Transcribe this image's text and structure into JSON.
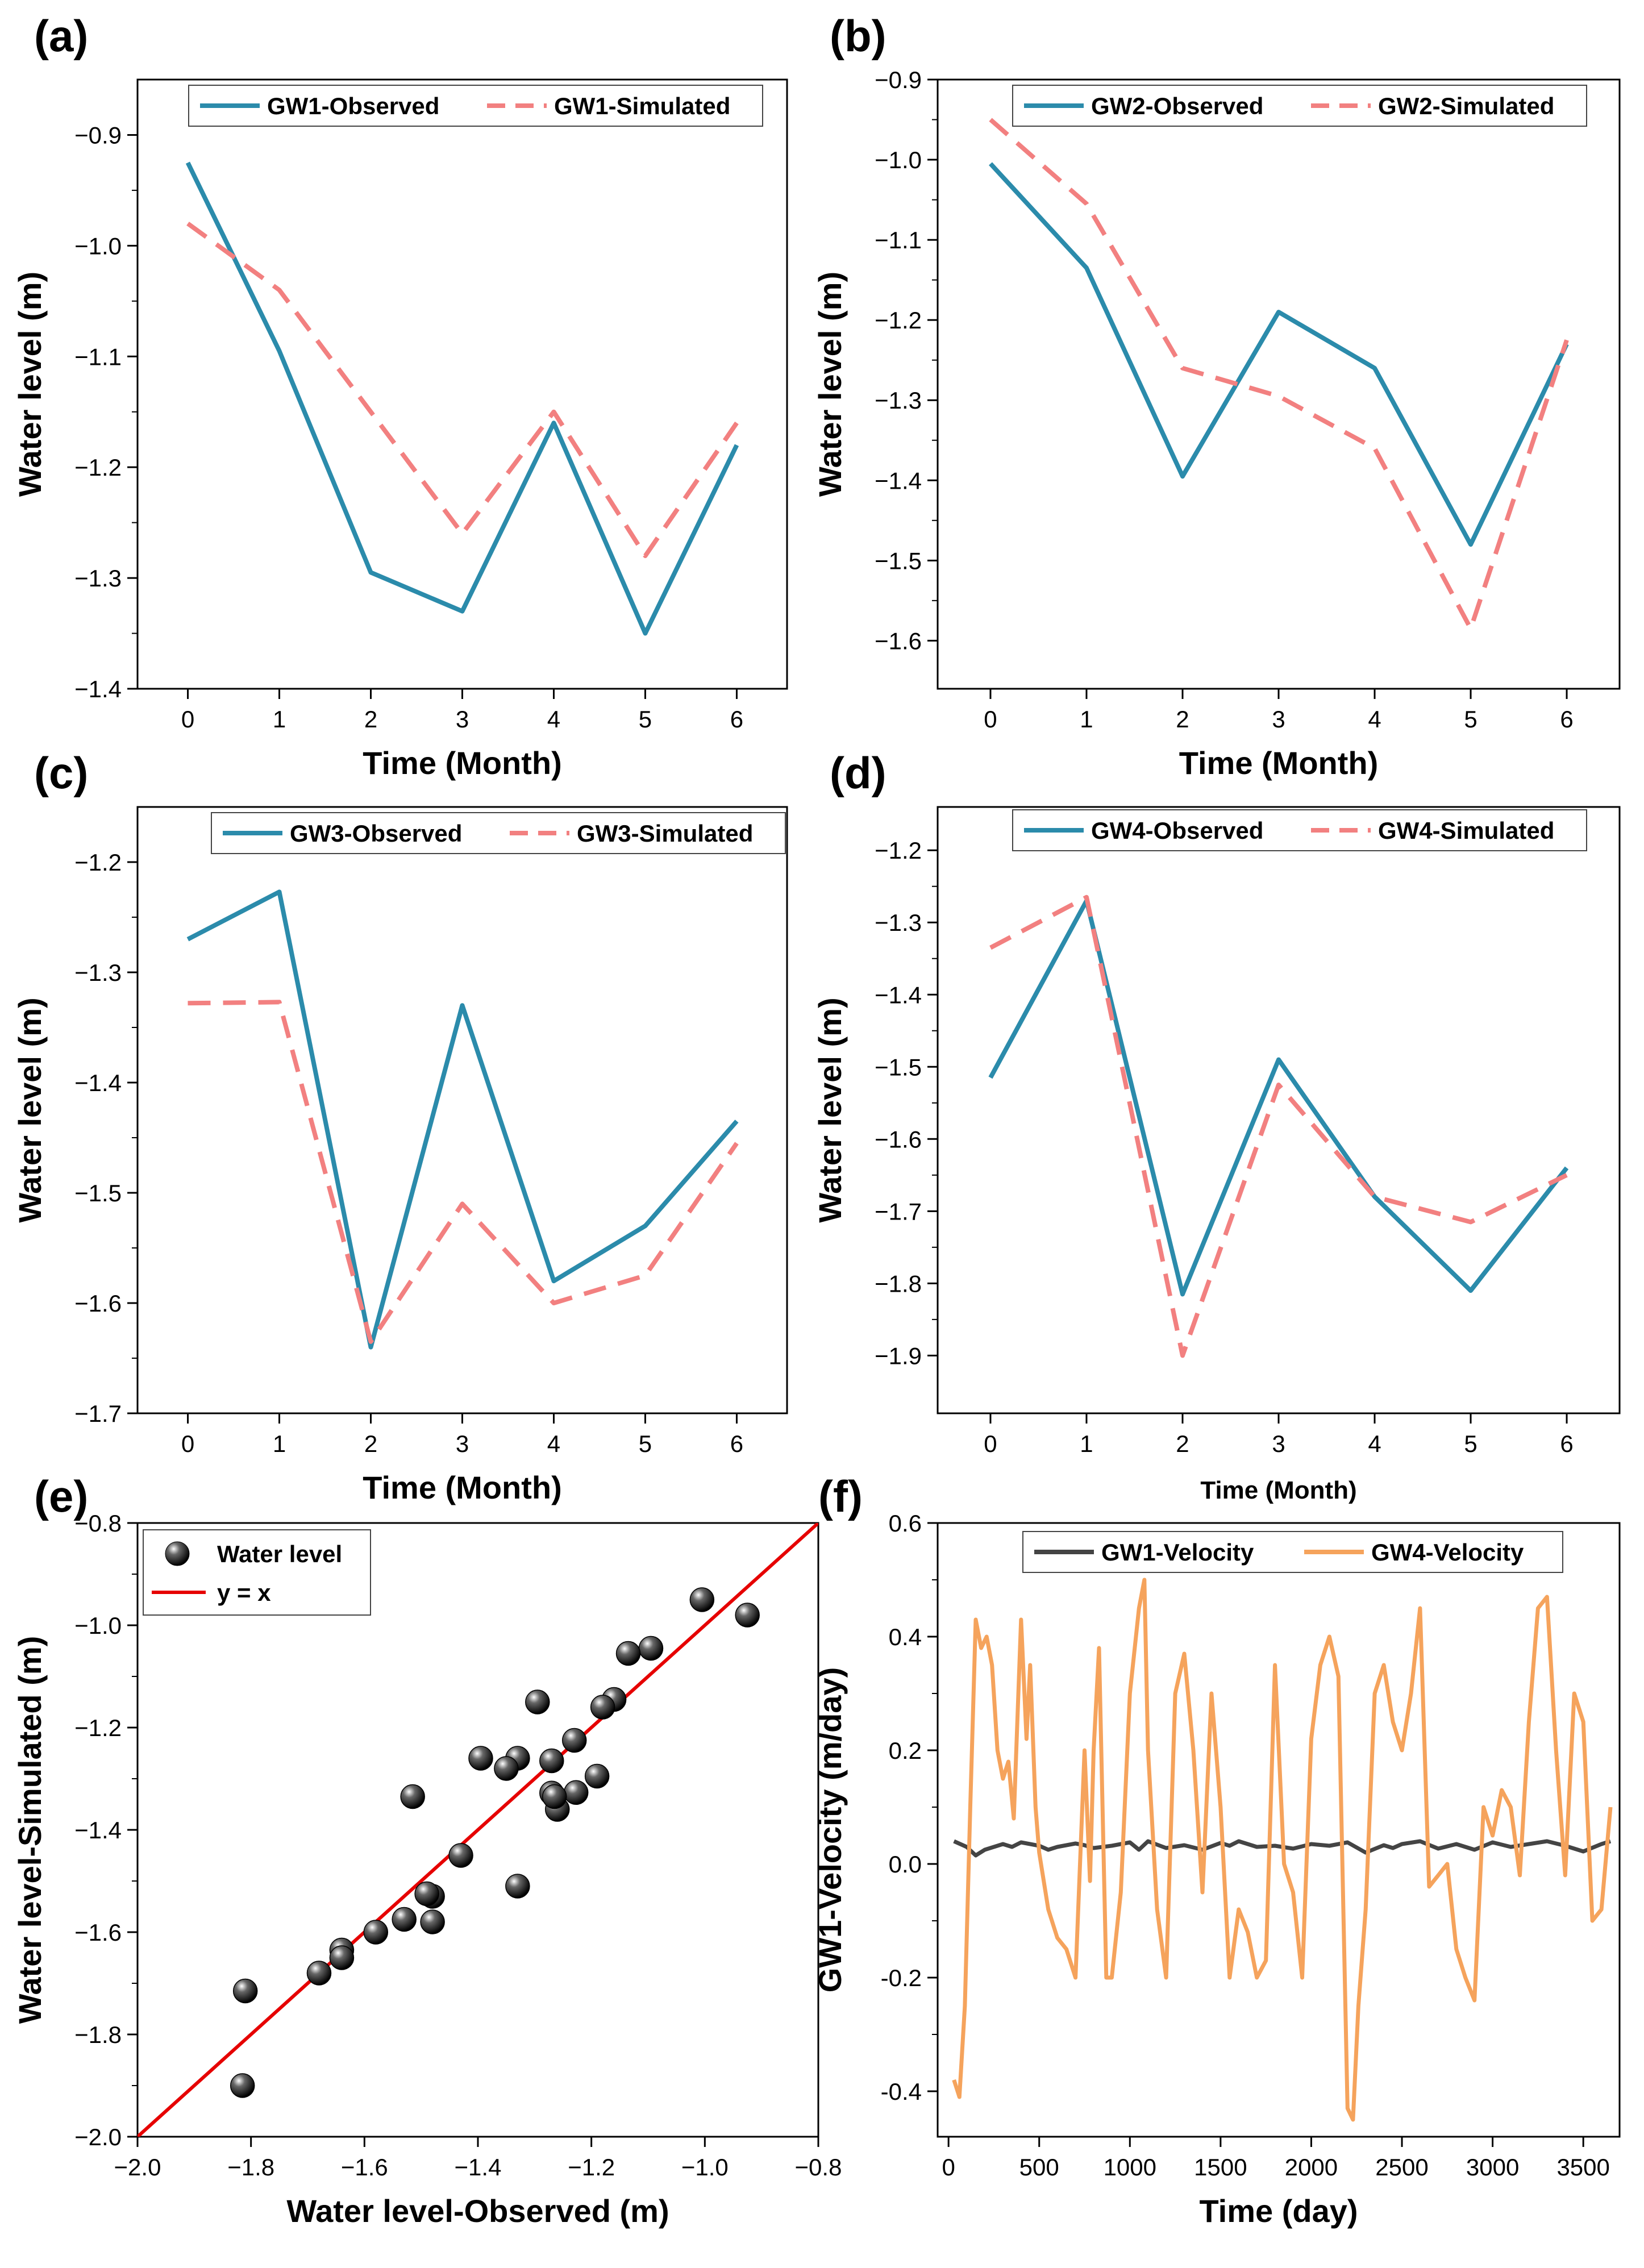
{
  "colors": {
    "observed": "#2b8bab",
    "simulated": "#f28080",
    "gw1_velocity": "#444444",
    "gw4_velocity": "#f5a35c",
    "fit_line": "#e60000",
    "marker": "#111111"
  },
  "chart_data": [
    {
      "id": "a",
      "type": "line",
      "panel_label": "(a)",
      "xlabel": "Time (Month)",
      "ylabel": "Water level (m)",
      "x": [
        0,
        1,
        2,
        3,
        4,
        5,
        6
      ],
      "xlim": [
        -0.55,
        6.55
      ],
      "ylim": [
        -1.4,
        -0.85
      ],
      "xticks": [
        0,
        1,
        2,
        3,
        4,
        5,
        6
      ],
      "xtick_labels": [
        "0",
        "1",
        "2",
        "3",
        "4",
        "5",
        "6"
      ],
      "yticks": [
        -1.4,
        -1.3,
        -1.2,
        -1.1,
        -1.0,
        -0.9
      ],
      "ytick_labels": [
        "−1.4",
        "−1.3",
        "−1.2",
        "−1.1",
        "−1.0",
        "−0.9"
      ],
      "legend": "top",
      "series": [
        {
          "name": "GW1-Observed",
          "style": "solid",
          "color_key": "observed",
          "values": [
            -0.925,
            -1.095,
            -1.295,
            -1.33,
            -1.16,
            -1.35,
            -1.18
          ]
        },
        {
          "name": "GW1-Simulated",
          "style": "dashed",
          "color_key": "simulated",
          "values": [
            -0.98,
            -1.04,
            -1.15,
            -1.26,
            -1.15,
            -1.28,
            -1.16
          ]
        }
      ]
    },
    {
      "id": "b",
      "type": "line",
      "panel_label": "(b)",
      "xlabel": "Time (Month)",
      "ylabel": "Water level (m)",
      "x": [
        0,
        1,
        2,
        3,
        4,
        5,
        6
      ],
      "xlim": [
        -0.55,
        6.55
      ],
      "ylim": [
        -1.66,
        -0.9
      ],
      "xticks": [
        0,
        1,
        2,
        3,
        4,
        5,
        6
      ],
      "xtick_labels": [
        "0",
        "1",
        "2",
        "3",
        "4",
        "5",
        "6"
      ],
      "yticks": [
        -1.6,
        -1.5,
        -1.4,
        -1.3,
        -1.2,
        -1.1,
        -1.0,
        -0.9
      ],
      "ytick_labels": [
        "−1.6",
        "−1.5",
        "−1.4",
        "−1.3",
        "−1.2",
        "−1.1",
        "−1.0",
        "−0.9"
      ],
      "legend": "top",
      "series": [
        {
          "name": "GW2-Observed",
          "style": "solid",
          "color_key": "observed",
          "values": [
            -1.005,
            -1.135,
            -1.395,
            -1.19,
            -1.26,
            -1.48,
            -1.23
          ]
        },
        {
          "name": "GW2-Simulated",
          "style": "dashed",
          "color_key": "simulated",
          "values": [
            -0.95,
            -1.055,
            -1.26,
            -1.295,
            -1.36,
            -1.585,
            -1.225
          ]
        }
      ]
    },
    {
      "id": "c",
      "type": "line",
      "panel_label": "(c)",
      "xlabel": "Time (Month)",
      "ylabel": "Water level (m)",
      "x": [
        0,
        1,
        2,
        3,
        4,
        5,
        6
      ],
      "xlim": [
        -0.55,
        6.55
      ],
      "ylim": [
        -1.7,
        -1.15
      ],
      "xticks": [
        0,
        1,
        2,
        3,
        4,
        5,
        6
      ],
      "xtick_labels": [
        "0",
        "1",
        "2",
        "3",
        "4",
        "5",
        "6"
      ],
      "yticks": [
        -1.7,
        -1.6,
        -1.5,
        -1.4,
        -1.3,
        -1.2
      ],
      "ytick_labels": [
        "−1.7",
        "−1.6",
        "−1.5",
        "−1.4",
        "−1.3",
        "−1.2"
      ],
      "legend": "top",
      "series": [
        {
          "name": "GW3-Observed",
          "style": "solid",
          "color_key": "observed",
          "values": [
            -1.27,
            -1.227,
            -1.64,
            -1.33,
            -1.58,
            -1.53,
            -1.435
          ]
        },
        {
          "name": "GW3-Simulated",
          "style": "dashed",
          "color_key": "simulated",
          "values": [
            -1.328,
            -1.327,
            -1.635,
            -1.51,
            -1.6,
            -1.575,
            -1.455
          ]
        }
      ]
    },
    {
      "id": "d",
      "type": "line",
      "panel_label": "(d)",
      "xlabel": "Time (Month)",
      "ylabel": "Water level (m)",
      "x": [
        0,
        1,
        2,
        3,
        4,
        5,
        6
      ],
      "xlim": [
        -0.55,
        6.55
      ],
      "ylim": [
        -1.98,
        -1.14
      ],
      "xticks": [
        0,
        1,
        2,
        3,
        4,
        5,
        6
      ],
      "xtick_labels": [
        "0",
        "1",
        "2",
        "3",
        "4",
        "5",
        "6"
      ],
      "yticks": [
        -1.9,
        -1.8,
        -1.7,
        -1.6,
        -1.5,
        -1.4,
        -1.3,
        -1.2
      ],
      "ytick_labels": [
        "−1.9",
        "−1.8",
        "−1.7",
        "−1.6",
        "−1.5",
        "−1.4",
        "−1.3",
        "−1.2"
      ],
      "legend": "top",
      "series": [
        {
          "name": "GW4-Observed",
          "style": "solid",
          "color_key": "observed",
          "values": [
            -1.515,
            -1.27,
            -1.815,
            -1.49,
            -1.68,
            -1.81,
            -1.64
          ]
        },
        {
          "name": "GW4-Simulated",
          "style": "dashed",
          "color_key": "simulated",
          "values": [
            -1.335,
            -1.265,
            -1.9,
            -1.525,
            -1.68,
            -1.715,
            -1.65
          ]
        }
      ]
    },
    {
      "id": "e",
      "type": "scatter",
      "panel_label": "(e)",
      "xlabel": "Water level-Observed (m)",
      "ylabel": "Water level-Simulated (m)",
      "xlim": [
        -2.0,
        -0.8
      ],
      "ylim": [
        -2.0,
        -0.8
      ],
      "xticks": [
        -2.0,
        -1.8,
        -1.6,
        -1.4,
        -1.2,
        -1.0,
        -0.8
      ],
      "xtick_labels": [
        "−2.0",
        "−1.8",
        "−1.6",
        "−1.4",
        "−1.2",
        "−1.0",
        "−0.8"
      ],
      "yticks": [
        -2.0,
        -1.8,
        -1.6,
        -1.4,
        -1.2,
        -1.0,
        -0.8
      ],
      "ytick_labels": [
        "−2.0",
        "−1.8",
        "−1.6",
        "−1.4",
        "−1.2",
        "−1.0",
        "−0.8"
      ],
      "legend": "top-left",
      "legend_entries": [
        "Water level",
        "y = x"
      ],
      "points": [
        [
          -0.925,
          -0.98
        ],
        [
          -1.005,
          -0.95
        ],
        [
          -1.095,
          -1.045
        ],
        [
          -1.135,
          -1.055
        ],
        [
          -1.16,
          -1.145
        ],
        [
          -1.18,
          -1.16
        ],
        [
          -1.19,
          -1.295
        ],
        [
          -1.23,
          -1.225
        ],
        [
          -1.26,
          -1.36
        ],
        [
          -1.295,
          -1.15
        ],
        [
          -1.33,
          -1.26
        ],
        [
          -1.35,
          -1.28
        ],
        [
          -1.395,
          -1.26
        ],
        [
          -1.43,
          -1.45
        ],
        [
          -1.227,
          -1.327
        ],
        [
          -1.27,
          -1.328
        ],
        [
          -1.27,
          -1.265
        ],
        [
          -1.265,
          -1.335
        ],
        [
          -1.33,
          -1.51
        ],
        [
          -1.48,
          -1.53
        ],
        [
          -1.49,
          -1.525
        ],
        [
          -1.515,
          -1.335
        ],
        [
          -1.53,
          -1.575
        ],
        [
          -1.58,
          -1.6
        ],
        [
          -1.64,
          -1.635
        ],
        [
          -1.64,
          -1.65
        ],
        [
          -1.68,
          -1.68
        ],
        [
          -1.815,
          -1.9
        ],
        [
          -1.81,
          -1.715
        ],
        [
          -1.48,
          -1.58
        ]
      ],
      "fit": {
        "name": "y = x",
        "from": [
          -2.0,
          -2.0
        ],
        "to": [
          -0.8,
          -0.8
        ]
      }
    },
    {
      "id": "f",
      "type": "line",
      "panel_label": "(f)",
      "xlabel": "Time (day)",
      "ylabel": "GW1-Velocity (m/day)",
      "xlim": [
        -60,
        3700
      ],
      "ylim": [
        -0.48,
        0.6
      ],
      "xticks": [
        0,
        500,
        1000,
        1500,
        2000,
        2500,
        3000,
        3500
      ],
      "xtick_labels": [
        "0",
        "500",
        "1000",
        "1500",
        "2000",
        "2500",
        "3000",
        "3500"
      ],
      "yticks": [
        -0.4,
        -0.2,
        0.0,
        0.2,
        0.4,
        0.6
      ],
      "ytick_labels": [
        "-0.4",
        "-0.2",
        "0.0",
        "0.2",
        "0.4",
        "0.6"
      ],
      "legend": "top",
      "series": [
        {
          "name": "GW1-Velocity",
          "style": "solid",
          "color_key": "gw1_velocity",
          "x": [
            30,
            100,
            150,
            200,
            300,
            350,
            400,
            500,
            550,
            600,
            700,
            750,
            800,
            900,
            1000,
            1050,
            1100,
            1200,
            1300,
            1400,
            1500,
            1550,
            1600,
            1700,
            1800,
            1900,
            2000,
            2100,
            2200,
            2300,
            2400,
            2450,
            2500,
            2600,
            2700,
            2800,
            2900,
            3000,
            3100,
            3200,
            3300,
            3400,
            3500,
            3600,
            3650
          ],
          "values": [
            0.04,
            0.03,
            0.015,
            0.025,
            0.035,
            0.03,
            0.038,
            0.032,
            0.025,
            0.03,
            0.036,
            0.033,
            0.028,
            0.032,
            0.038,
            0.025,
            0.04,
            0.028,
            0.033,
            0.025,
            0.037,
            0.032,
            0.04,
            0.03,
            0.032,
            0.027,
            0.035,
            0.032,
            0.038,
            0.02,
            0.033,
            0.028,
            0.035,
            0.04,
            0.027,
            0.035,
            0.025,
            0.038,
            0.03,
            0.035,
            0.04,
            0.032,
            0.022,
            0.035,
            0.04
          ]
        },
        {
          "name": "GW4-Velocity",
          "style": "solid",
          "color_key": "gw4_velocity",
          "x": [
            30,
            60,
            90,
            120,
            150,
            180,
            210,
            240,
            270,
            300,
            330,
            360,
            400,
            430,
            450,
            480,
            500,
            520,
            550,
            600,
            650,
            700,
            750,
            780,
            800,
            830,
            870,
            900,
            950,
            1000,
            1050,
            1080,
            1100,
            1150,
            1200,
            1250,
            1300,
            1350,
            1400,
            1450,
            1500,
            1550,
            1600,
            1650,
            1700,
            1750,
            1800,
            1850,
            1900,
            1950,
            2000,
            2050,
            2100,
            2150,
            2200,
            2230,
            2260,
            2300,
            2350,
            2400,
            2450,
            2500,
            2550,
            2600,
            2650,
            2700,
            2750,
            2800,
            2850,
            2900,
            2950,
            3000,
            3050,
            3100,
            3150,
            3200,
            3250,
            3300,
            3350,
            3400,
            3450,
            3500,
            3550,
            3600,
            3650
          ],
          "values": [
            -0.38,
            -0.41,
            -0.25,
            0.1,
            0.43,
            0.38,
            0.4,
            0.35,
            0.2,
            0.15,
            0.18,
            0.08,
            0.43,
            0.22,
            0.35,
            0.1,
            0.02,
            -0.02,
            -0.08,
            -0.13,
            -0.15,
            -0.2,
            0.2,
            -0.03,
            0.2,
            0.38,
            -0.2,
            -0.2,
            -0.05,
            0.3,
            0.45,
            0.5,
            0.2,
            -0.08,
            -0.2,
            0.3,
            0.37,
            0.2,
            -0.05,
            0.3,
            0.1,
            -0.2,
            -0.08,
            -0.12,
            -0.2,
            -0.17,
            0.35,
            0.0,
            -0.05,
            -0.2,
            0.22,
            0.35,
            0.4,
            0.33,
            -0.43,
            -0.45,
            -0.25,
            -0.08,
            0.3,
            0.35,
            0.25,
            0.2,
            0.3,
            0.45,
            -0.04,
            -0.02,
            0.0,
            -0.15,
            -0.2,
            -0.24,
            0.1,
            0.05,
            0.13,
            0.1,
            -0.02,
            0.25,
            0.45,
            0.47,
            0.2,
            -0.02,
            0.3,
            0.25,
            -0.1,
            -0.08,
            0.1
          ]
        }
      ]
    }
  ]
}
